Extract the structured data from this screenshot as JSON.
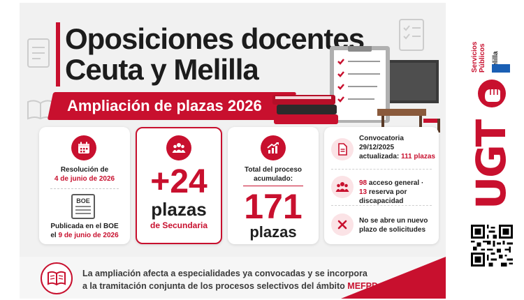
{
  "title_line1": "Oposiciones docentes",
  "title_line2": "Ceuta y Melilla",
  "subtitle": "Ampliación de plazas 2026",
  "resolucion": {
    "label": "Resolución de",
    "date": "4 de junio de 2026"
  },
  "boe": {
    "badge": "BOE",
    "label": "Publicada en el BOE",
    "date_prefix": "el",
    "date": "9 de junio de 2026"
  },
  "plazas_nuevas": {
    "number": "+24",
    "unit": "plazas",
    "detail": "de Secundaria"
  },
  "total": {
    "label1": "Total del proceso",
    "label2": "acumulado:",
    "number": "171",
    "unit": "plazas"
  },
  "convocatoria": {
    "line1": "Convocatoria",
    "line2": "29/12/2025",
    "line3": "actualizada:",
    "plazas": "111 plazas"
  },
  "reparto": {
    "general": "98",
    "general_label": "acceso general ·",
    "reserva": "13",
    "reserva_label": "reserva por discapacidad"
  },
  "plazo": {
    "line1": "No se abre un nuevo",
    "line2": "plazo de solicitudes"
  },
  "footer": {
    "text1": "La ampliación afecta a especialidades ya convocadas y se incorpora",
    "text2": "a la tramitación conjunta de los procesos selectivos del ámbito",
    "highlight": "MEFPD."
  },
  "side": {
    "sp1": "Servicios",
    "sp2": "Públicos",
    "sp3": "Melilla",
    "ugt": "UGT"
  },
  "colors": {
    "accent": "#c8102e",
    "dark": "#1c1c1c",
    "bg": "#f1f1f1"
  },
  "icons": [
    "calendar-icon",
    "newspaper-icon",
    "people-icon",
    "growth-chart-icon",
    "document-icon",
    "group-icon",
    "cross-icon",
    "book-icon",
    "fist-logo-icon",
    "qr-code-icon"
  ]
}
